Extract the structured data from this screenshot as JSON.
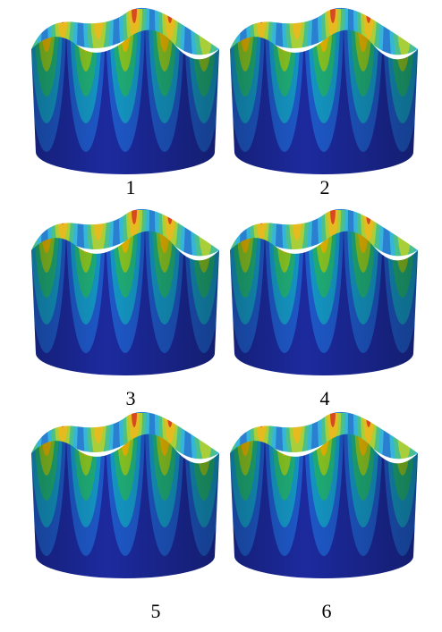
{
  "labels": [
    "1",
    "2",
    "3",
    "4",
    "5",
    "6"
  ]
}
